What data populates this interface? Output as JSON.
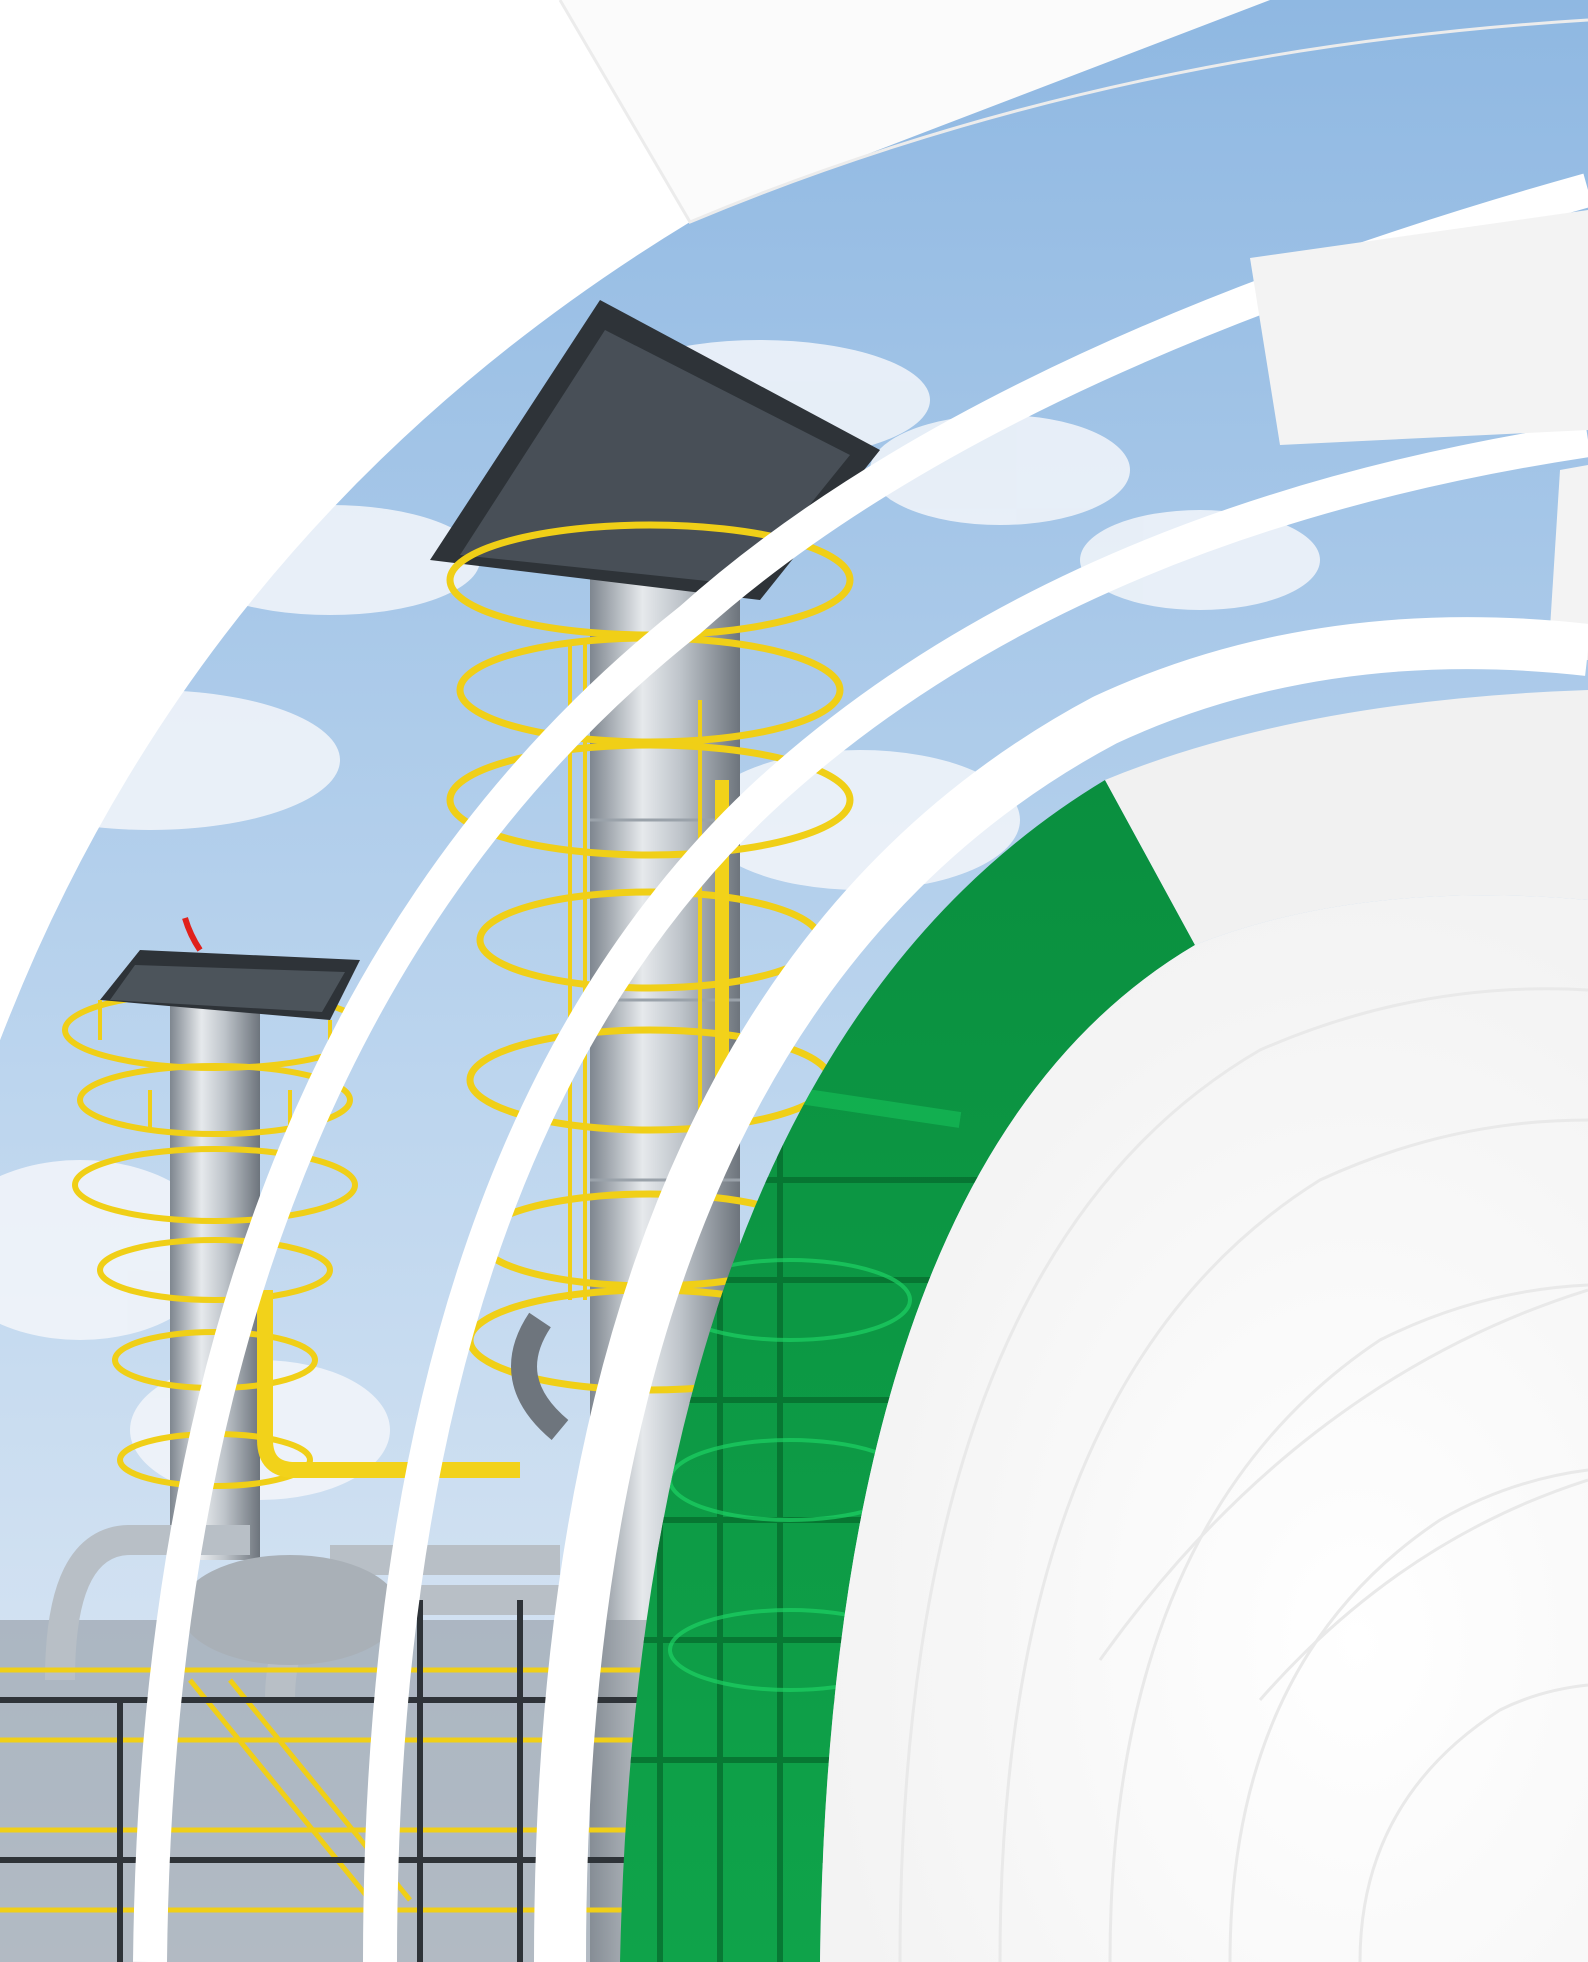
{
  "scene": {
    "subject": "industrial-refinery-towers",
    "palette": {
      "sky_top": "#9fc3e6",
      "sky_bottom": "#d9e8f5",
      "cloud": "#f4f7fb",
      "steel": "#c9ced4",
      "steel_shadow": "#7d858e",
      "railing_yellow": "#f2d21a",
      "structure_dark": "#2e3338",
      "accent_green": "#0e9a45",
      "ring_white": "#ffffff",
      "ring_light_grey": "#f1f1f1",
      "background": "#fbfbfb"
    }
  }
}
